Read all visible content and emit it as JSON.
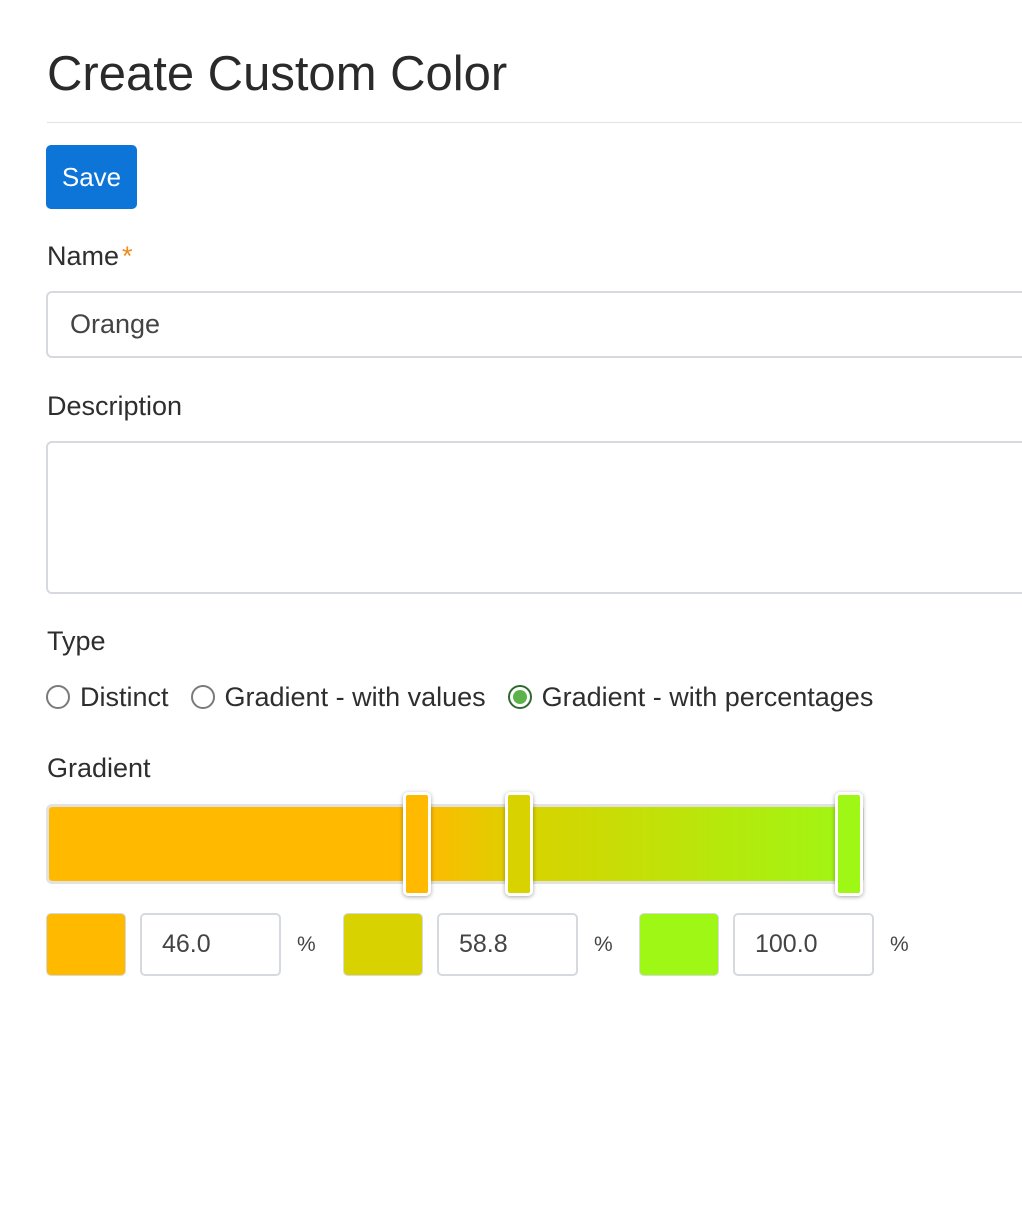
{
  "page": {
    "title": "Create Custom Color"
  },
  "toolbar": {
    "save_label": "Save"
  },
  "form": {
    "name": {
      "label": "Name",
      "required_mark": "*",
      "value": "Orange"
    },
    "description": {
      "label": "Description",
      "value": ""
    },
    "type": {
      "label": "Type",
      "options": [
        {
          "label": "Distinct",
          "checked": false
        },
        {
          "label": "Gradient - with values",
          "checked": false
        },
        {
          "label": "Gradient - with percentages",
          "checked": true
        }
      ]
    },
    "gradient": {
      "label": "Gradient",
      "stops": [
        {
          "color": "#ffba00",
          "value": "46.0",
          "unit": "%"
        },
        {
          "color": "#d8d300",
          "value": "58.8",
          "unit": "%"
        },
        {
          "color": "#9ef714",
          "value": "100.0",
          "unit": "%"
        }
      ]
    }
  },
  "colors": {
    "primary_button": "#0d74d8",
    "required": "#f08a1c",
    "radio_checked": "#5cb34a"
  }
}
